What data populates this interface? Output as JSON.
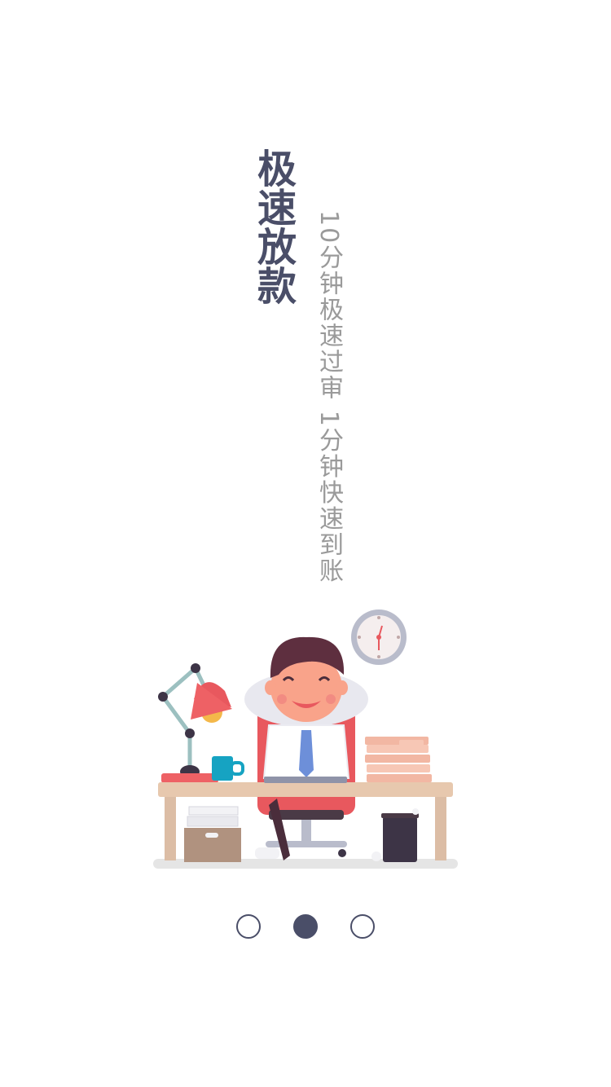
{
  "slide": {
    "title": "极速放款",
    "subtitle": "10分钟极速过审 1分钟快速到账",
    "illustration_icon": "relaxed-man-at-desk-illustration"
  },
  "pager": {
    "total": 3,
    "active_index": 1
  },
  "colors": {
    "title": "#4a4e68",
    "subtitle": "#9a9a9a",
    "dot": "#4a4e68",
    "chair": "#e8585e",
    "desk": "#e7c8ae",
    "clock_rim": "#b9bccb",
    "money": "#f2b7a3"
  }
}
